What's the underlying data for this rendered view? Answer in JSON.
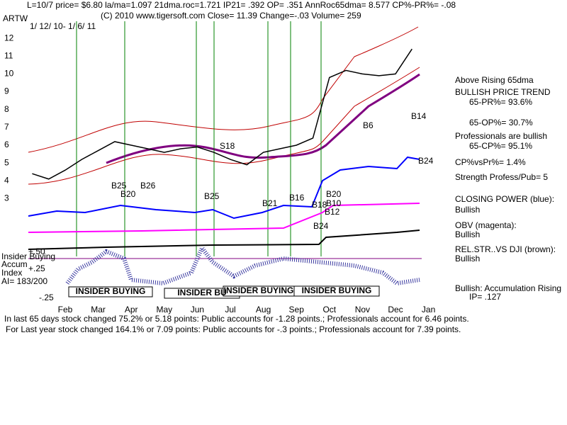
{
  "chart_data": {
    "type": "line",
    "title": "L=10/7  price= $6.80  la/ma=1.097 21dma.roc=1.721 IP21= .392 OP= .351 AnnRoc65dma= 8.577 CP%-PR%= -.08",
    "subtitle": "(C) 2010 www.tigersoft.com    Close=  11.39  Change=-.03 Volume= 259",
    "symbol": "ARTW",
    "date_range": "1/ 12/ 10-  1/ 6/ 11",
    "categories": [
      null,
      null,
      "Feb",
      null,
      "Mar",
      null,
      "Apr",
      null,
      "May",
      null,
      "Jun",
      null,
      "Jul",
      null,
      "Aug",
      null,
      "Sep",
      null,
      "Oct",
      null,
      "Nov",
      null,
      "Dec",
      null,
      "Jan"
    ],
    "series": [
      {
        "name": "ARTW",
        "color": "#000000",
        "values": [
          4.4,
          4.1,
          4.6,
          5.2,
          5.7,
          6.2,
          6.0,
          5.8,
          5.6,
          5.8,
          5.9,
          5.6,
          5.2,
          4.9,
          5.6,
          5.8,
          6.0,
          6.4,
          9.8,
          10.2,
          10.0,
          9.9,
          10.0,
          11.4,
          null
        ]
      }
    ],
    "ylim": [
      2.5,
      12.8
    ],
    "yticks": [
      3,
      4,
      5,
      6,
      7,
      8,
      9,
      10,
      11,
      12
    ],
    "annotations": [
      "B25",
      "B26",
      "B20",
      "B25",
      "S18",
      "B21",
      "B18",
      "B16",
      "B20",
      "B12",
      "B24",
      "B6",
      "B14",
      "B24",
      "B10"
    ],
    "insider_labels": [
      "INSIDER BUYING",
      "INSIDER BU",
      "INSIDER BUYING",
      "INSIDER BUYING"
    ],
    "accum_panel": [
      "Insider Buying",
      "Accum",
      "Index",
      "AI= 183/200",
      "+.50",
      "+.25",
      "-.25"
    ],
    "side_panel": [
      "Above Rising 65dma",
      "BULLISH PRICE TREND",
      "65-PR%= 93.6%",
      "65-OP%= 30.7%",
      "Professionals are bullish",
      "65-CP%= 95.1%",
      "CP%vsPr%= 1.4%",
      "Strength Profess/Pub= 5",
      "CLOSING POWER (blue):",
      "Bullish",
      "OBV (magenta):",
      "Bullish",
      "REL.STR..VS DJI (brown):",
      "Bullish",
      "Bullish: Accumulation Rising",
      "IP=  .127"
    ],
    "footer": [
      "In last 65 days stock changed  75.2% or  5.18 points:  Public accounts for -1.28 points.;  Professionals account for  6.46 points.",
      "For Last year stock changed  164.1% or  7.09 points:  Public accounts for -.3 points.;  Professionals account for  7.39 points."
    ]
  }
}
